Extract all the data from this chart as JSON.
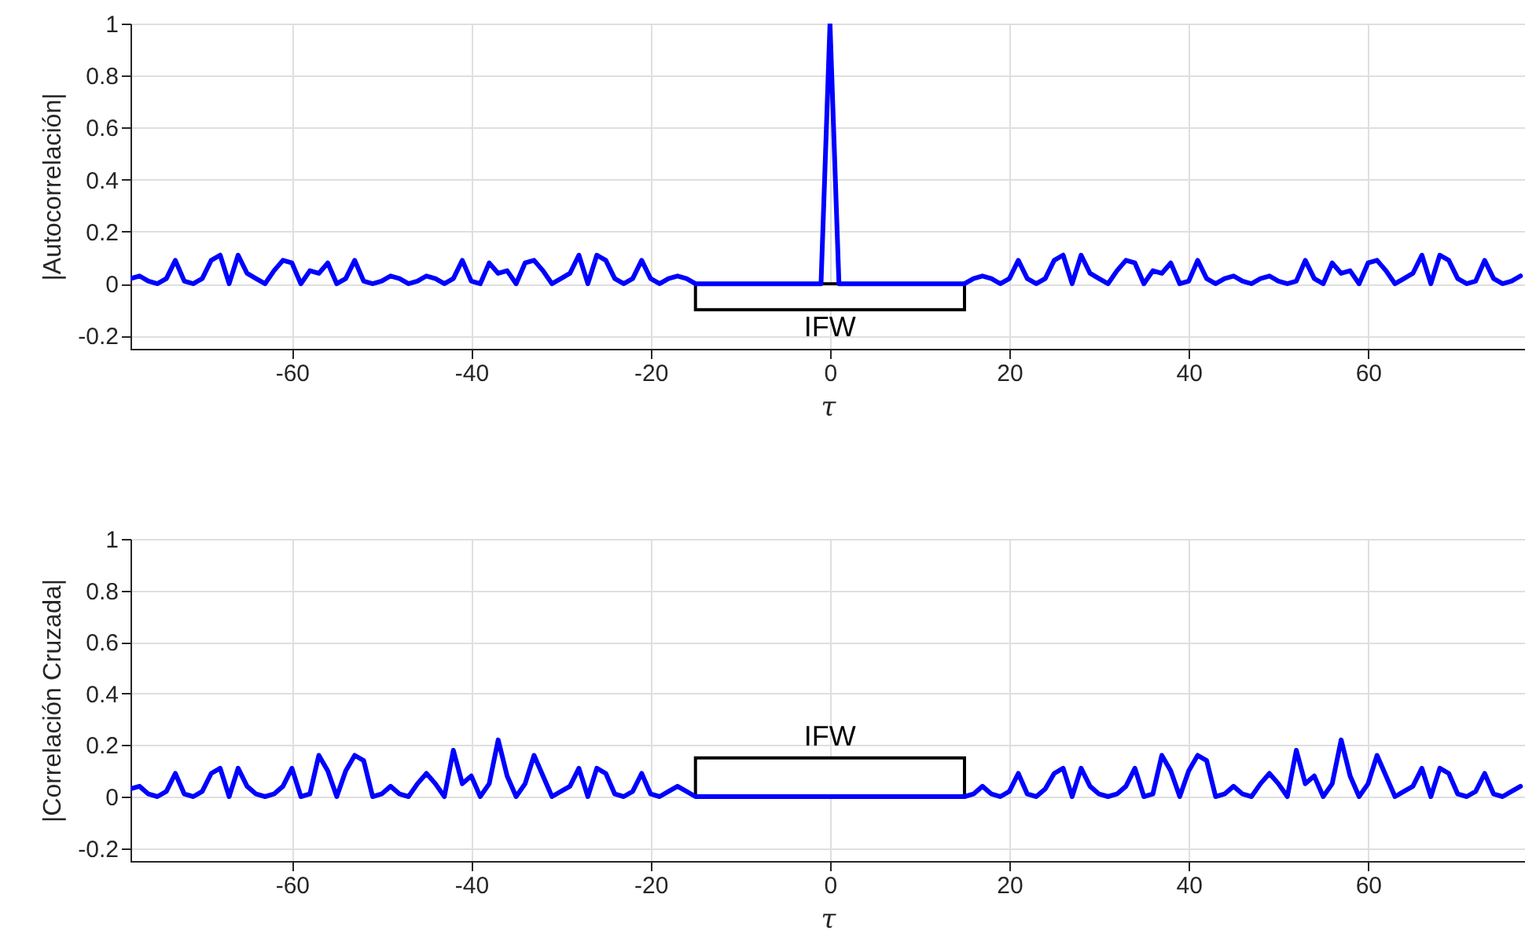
{
  "chart_data": [
    {
      "type": "line",
      "xlabel": "τ",
      "ylabel": "|Autocorrelación|",
      "x": [
        -78,
        -77,
        -76,
        -75,
        -74,
        -73,
        -72,
        -71,
        -70,
        -69,
        -68,
        -67,
        -66,
        -65,
        -64,
        -63,
        -62,
        -61,
        -60,
        -59,
        -58,
        -57,
        -56,
        -55,
        -54,
        -53,
        -52,
        -51,
        -50,
        -49,
        -48,
        -47,
        -46,
        -45,
        -44,
        -43,
        -42,
        -41,
        -40,
        -39,
        -38,
        -37,
        -36,
        -35,
        -34,
        -33,
        -32,
        -31,
        -30,
        -29,
        -28,
        -27,
        -26,
        -25,
        -24,
        -23,
        -22,
        -21,
        -20,
        -19,
        -18,
        -17,
        -16,
        -15,
        -14,
        -13,
        -12,
        -11,
        -10,
        -9,
        -8,
        -7,
        -6,
        -5,
        -4,
        -3,
        -2,
        -1,
        0,
        1,
        2,
        3,
        4,
        5,
        6,
        7,
        8,
        9,
        10,
        11,
        12,
        13,
        14,
        15,
        16,
        17,
        18,
        19,
        20,
        21,
        22,
        23,
        24,
        25,
        26,
        27,
        28,
        29,
        30,
        31,
        32,
        33,
        34,
        35,
        36,
        37,
        38,
        39,
        40,
        41,
        42,
        43,
        44,
        45,
        46,
        47,
        48,
        49,
        50,
        51,
        52,
        53,
        54,
        55,
        56,
        57,
        58,
        59,
        60,
        61,
        62,
        63,
        64,
        65,
        66,
        67,
        68,
        69,
        70,
        71,
        72,
        73,
        74,
        75,
        76,
        77
      ],
      "series": [
        {
          "color": "#0000ff",
          "values": [
            0.02,
            0.03,
            0.01,
            0,
            0.02,
            0.09,
            0.01,
            0,
            0.02,
            0.09,
            0.11,
            0,
            0.11,
            0.04,
            0.02,
            0,
            0.05,
            0.09,
            0.08,
            0,
            0.05,
            0.04,
            0.08,
            0,
            0.02,
            0.09,
            0.01,
            0,
            0.01,
            0.03,
            0.02,
            0,
            0.01,
            0.03,
            0.02,
            0,
            0.02,
            0.09,
            0.01,
            0,
            0.08,
            0.04,
            0.05,
            0,
            0.08,
            0.09,
            0.05,
            0,
            0.02,
            0.04,
            0.11,
            0,
            0.11,
            0.09,
            0.02,
            0,
            0.02,
            0.09,
            0.02,
            0,
            0.02,
            0.03,
            0.02,
            0,
            0,
            0,
            0,
            0,
            0,
            0,
            0,
            0,
            0,
            0,
            0,
            0,
            0,
            0,
            1,
            0,
            0,
            0,
            0,
            0,
            0,
            0,
            0,
            0,
            0,
            0,
            0,
            0,
            0,
            0,
            0.02,
            0.03,
            0.02,
            0,
            0.02,
            0.09,
            0.02,
            0,
            0.02,
            0.09,
            0.11,
            0,
            0.11,
            0.04,
            0.02,
            0,
            0.05,
            0.09,
            0.08,
            0,
            0.05,
            0.04,
            0.08,
            0,
            0.01,
            0.09,
            0.02,
            0,
            0.02,
            0.03,
            0.01,
            0,
            0.02,
            0.03,
            0.01,
            0,
            0.01,
            0.09,
            0.02,
            0,
            0.08,
            0.04,
            0.05,
            0,
            0.08,
            0.09,
            0.05,
            0,
            0.02,
            0.04,
            0.11,
            0,
            0.11,
            0.09,
            0.02,
            0,
            0.01,
            0.09,
            0.02,
            0,
            0.01,
            0.03
          ]
        }
      ],
      "xlim": [
        -78,
        77.5
      ],
      "ylim": [
        -0.25,
        1
      ],
      "xticks": [
        -60,
        -40,
        -20,
        0,
        20,
        40,
        60
      ],
      "yticks": [
        -0.2,
        0,
        0.2,
        0.4,
        0.6,
        0.8,
        1
      ],
      "grid": true,
      "bands": [
        {
          "axis": "x",
          "from": -15,
          "to": 15,
          "label": "IFW"
        }
      ]
    },
    {
      "type": "line",
      "xlabel": "τ",
      "ylabel": "|Correlación Cruzada|",
      "x": [
        -78,
        -77,
        -76,
        -75,
        -74,
        -73,
        -72,
        -71,
        -70,
        -69,
        -68,
        -67,
        -66,
        -65,
        -64,
        -63,
        -62,
        -61,
        -60,
        -59,
        -58,
        -57,
        -56,
        -55,
        -54,
        -53,
        -52,
        -51,
        -50,
        -49,
        -48,
        -47,
        -46,
        -45,
        -44,
        -43,
        -42,
        -41,
        -40,
        -39,
        -38,
        -37,
        -36,
        -35,
        -34,
        -33,
        -32,
        -31,
        -30,
        -29,
        -28,
        -27,
        -26,
        -25,
        -24,
        -23,
        -22,
        -21,
        -20,
        -19,
        -18,
        -17,
        -16,
        -15,
        -14,
        -13,
        -12,
        -11,
        -10,
        -9,
        -8,
        -7,
        -6,
        -5,
        -4,
        -3,
        -2,
        -1,
        0,
        1,
        2,
        3,
        4,
        5,
        6,
        7,
        8,
        9,
        10,
        11,
        12,
        13,
        14,
        15,
        16,
        17,
        18,
        19,
        20,
        21,
        22,
        23,
        24,
        25,
        26,
        27,
        28,
        29,
        30,
        31,
        32,
        33,
        34,
        35,
        36,
        37,
        38,
        39,
        40,
        41,
        42,
        43,
        44,
        45,
        46,
        47,
        48,
        49,
        50,
        51,
        52,
        53,
        54,
        55,
        56,
        57,
        58,
        59,
        60,
        61,
        62,
        63,
        64,
        65,
        66,
        67,
        68,
        69,
        70,
        71,
        72,
        73,
        74,
        75,
        76,
        77
      ],
      "series": [
        {
          "color": "#0000ff",
          "values": [
            0.03,
            0.04,
            0.01,
            0,
            0.02,
            0.09,
            0.01,
            0,
            0.02,
            0.09,
            0.11,
            0,
            0.11,
            0.04,
            0.01,
            0,
            0.01,
            0.04,
            0.11,
            0,
            0.01,
            0.16,
            0.1,
            0,
            0.1,
            0.16,
            0.14,
            0,
            0.01,
            0.04,
            0.01,
            0,
            0.05,
            0.09,
            0.05,
            0,
            0.18,
            0.05,
            0.08,
            0,
            0.05,
            0.22,
            0.08,
            0,
            0.05,
            0.16,
            0.08,
            0,
            0.02,
            0.04,
            0.11,
            0,
            0.11,
            0.09,
            0.01,
            0,
            0.02,
            0.09,
            0.01,
            0,
            0.02,
            0.04,
            0.02,
            0,
            0,
            0,
            0,
            0,
            0,
            0,
            0,
            0,
            0,
            0,
            0,
            0,
            0,
            0,
            0,
            0,
            0,
            0,
            0,
            0,
            0,
            0,
            0,
            0,
            0,
            0,
            0,
            0,
            0,
            0,
            0.01,
            0.04,
            0.01,
            0,
            0.02,
            0.09,
            0.01,
            0,
            0.03,
            0.09,
            0.11,
            0,
            0.11,
            0.04,
            0.01,
            0,
            0.01,
            0.04,
            0.11,
            0,
            0.01,
            0.16,
            0.1,
            0,
            0.1,
            0.16,
            0.14,
            0,
            0.01,
            0.04,
            0.01,
            0,
            0.05,
            0.09,
            0.05,
            0,
            0.18,
            0.05,
            0.08,
            0,
            0.05,
            0.22,
            0.08,
            0,
            0.05,
            0.16,
            0.08,
            0,
            0.02,
            0.04,
            0.11,
            0,
            0.11,
            0.09,
            0.01,
            0,
            0.02,
            0.09,
            0.01,
            0,
            0.02,
            0.04
          ]
        }
      ],
      "xlim": [
        -78,
        77.5
      ],
      "ylim": [
        -0.25,
        1
      ],
      "xticks": [
        -60,
        -40,
        -20,
        0,
        20,
        40,
        60
      ],
      "yticks": [
        -0.2,
        0,
        0.2,
        0.4,
        0.6,
        0.8,
        1
      ],
      "grid": true,
      "bands": [
        {
          "axis": "x",
          "from": -15,
          "to": 15,
          "label": "IFW"
        }
      ]
    }
  ]
}
